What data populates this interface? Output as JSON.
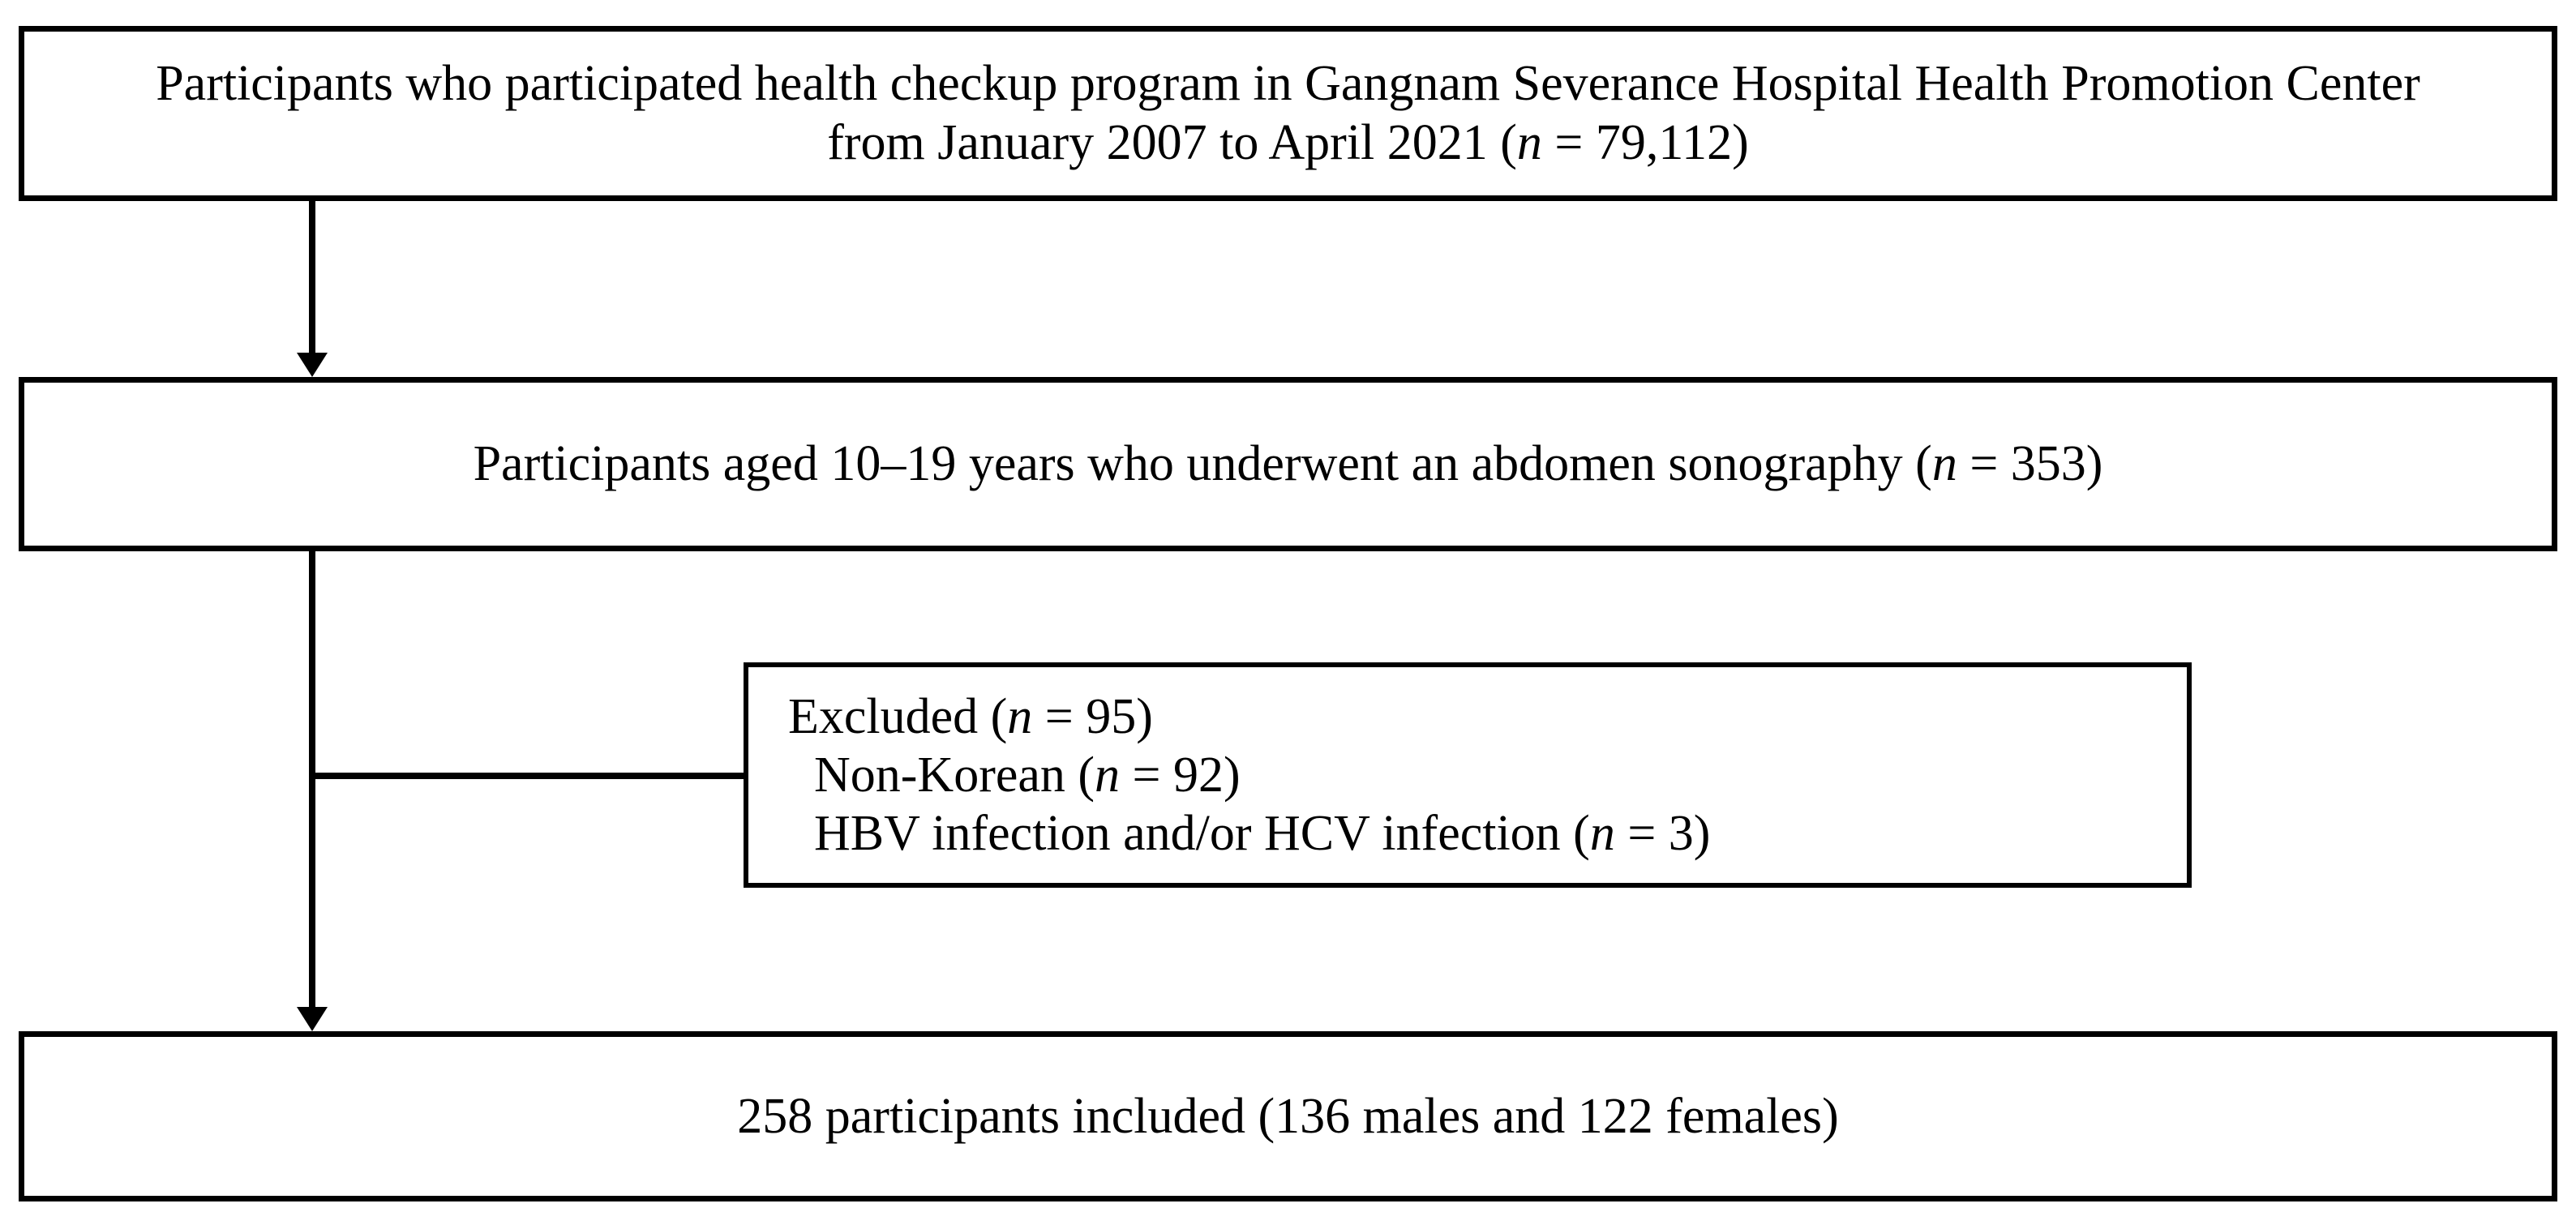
{
  "figure": {
    "type": "participant-flow-diagram",
    "colors": {
      "ink": "#000000",
      "background": "#ffffff"
    },
    "nodes": {
      "population": {
        "lines": [
          [
            {
              "t": "Participants who participated health checkup program in Gangnam Severance Hospital Health Promotion Center"
            }
          ],
          [
            {
              "t": "from January 2007 to April 2021 ("
            },
            {
              "t": "n",
              "i": true
            },
            {
              "t": " = 79,112)"
            }
          ]
        ]
      },
      "aged": {
        "lines": [
          [
            {
              "t": "Participants aged 10–19 years who underwent an abdomen sonography ("
            },
            {
              "t": "n",
              "i": true
            },
            {
              "t": " = 353)"
            }
          ]
        ]
      },
      "excluded": {
        "lines": [
          [
            {
              "t": "Excluded ("
            },
            {
              "t": "n",
              "i": true
            },
            {
              "t": " = 95)"
            }
          ],
          [
            {
              "t": "Non-Korean ("
            },
            {
              "t": "n",
              "i": true
            },
            {
              "t": " = 92)"
            }
          ],
          [
            {
              "t": "HBV infection and/or HCV infection ("
            },
            {
              "t": "n",
              "i": true
            },
            {
              "t": " = 3)"
            }
          ]
        ]
      },
      "included": {
        "lines": [
          [
            {
              "t": "258 participants included (136 males and 122 females)"
            }
          ]
        ]
      }
    }
  }
}
